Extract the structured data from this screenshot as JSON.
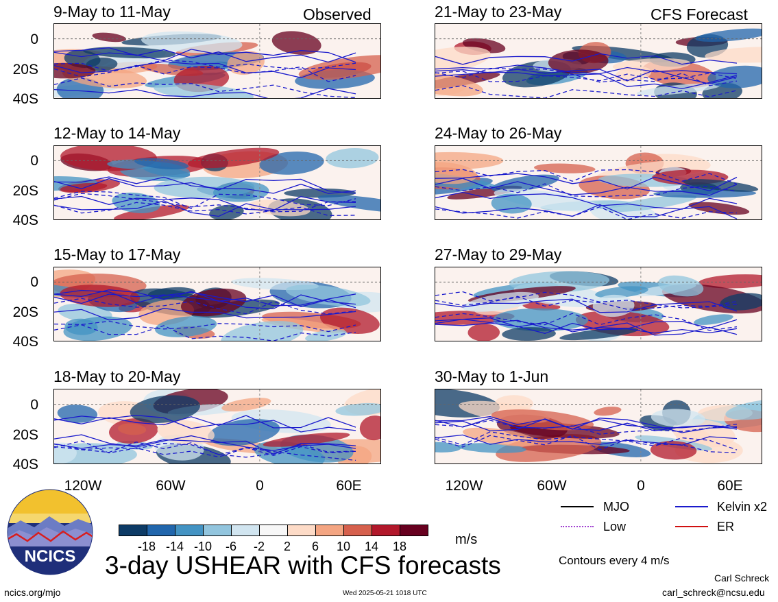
{
  "panels": {
    "observed_label": "Observed",
    "forecast_label": "CFS Forecast",
    "left": [
      {
        "title": "9-May to 11-May"
      },
      {
        "title": "12-May to 14-May"
      },
      {
        "title": "15-May to 17-May"
      },
      {
        "title": "18-May to 20-May"
      }
    ],
    "right": [
      {
        "title": "21-May to 23-May"
      },
      {
        "title": "24-May to 26-May"
      },
      {
        "title": "27-May to 29-May"
      },
      {
        "title": "30-May to 1-Jun"
      }
    ]
  },
  "axes": {
    "y_ticks": [
      "0",
      "20S",
      "40S"
    ],
    "x_ticks": [
      "120W",
      "60W",
      "0",
      "60E"
    ]
  },
  "colorbar": {
    "labels": [
      "-18",
      "-14",
      "-10",
      "-6",
      "-2",
      "2",
      "6",
      "10",
      "14",
      "18"
    ],
    "unit": "m/s",
    "colors": [
      "#0d3b66",
      "#2166ac",
      "#4393c3",
      "#92c5de",
      "#d1e5f0",
      "#f7f7f7",
      "#fddbc7",
      "#f4a582",
      "#d6604d",
      "#b2182b",
      "#67001f"
    ]
  },
  "title": "3-day USHEAR with CFS forecasts",
  "legend": {
    "items": [
      {
        "label": "MJO",
        "color": "#000000"
      },
      {
        "label": "Kelvin x2",
        "color": "#1a1acc"
      },
      {
        "label": "Low",
        "color": "#a040d0"
      },
      {
        "label": "ER",
        "color": "#d01010"
      }
    ],
    "contour_note": "Contours every 4 m/s"
  },
  "footer": {
    "url": "ncics.org/mjo",
    "timestamp": "Wed 2025-05-21 1018 UTC",
    "author": "Carl Schreck",
    "email": "carl_schreck@ncsu.edu"
  },
  "logo": {
    "text": "NCICS"
  }
}
